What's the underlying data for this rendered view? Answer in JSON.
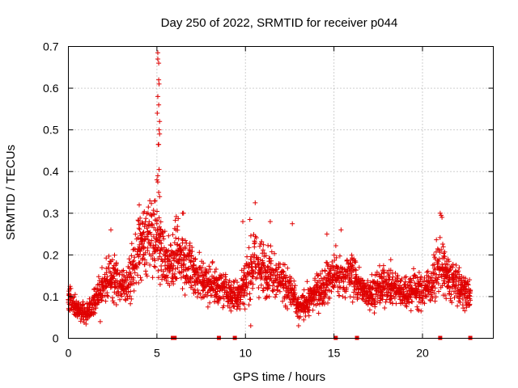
{
  "chart_data": {
    "type": "scatter",
    "title": "Day 250 of 2022, SRMTID for receiver p044",
    "xlabel": "GPS time / hours",
    "ylabel": "SRMTID / TECUs",
    "xlim": [
      0,
      24
    ],
    "ylim": [
      0,
      0.7
    ],
    "xticks": [
      0,
      5,
      10,
      15,
      20
    ],
    "yticks": [
      0,
      0.1,
      0.2,
      0.3,
      0.4,
      0.5,
      0.6,
      0.7
    ],
    "grid": true,
    "legend": "none",
    "marker": "plus",
    "color": "#e00000",
    "series": [
      {
        "name": "SRMTID",
        "generated_points": true,
        "baseline_profile": [
          [
            0.0,
            0.1
          ],
          [
            0.5,
            0.07
          ],
          [
            1.0,
            0.06
          ],
          [
            1.5,
            0.09
          ],
          [
            2.0,
            0.13
          ],
          [
            2.5,
            0.15
          ],
          [
            3.0,
            0.12
          ],
          [
            3.5,
            0.14
          ],
          [
            4.0,
            0.22
          ],
          [
            4.5,
            0.24
          ],
          [
            5.0,
            0.25
          ],
          [
            5.5,
            0.18
          ],
          [
            6.0,
            0.2
          ],
          [
            6.5,
            0.19
          ],
          [
            7.0,
            0.17
          ],
          [
            7.5,
            0.14
          ],
          [
            8.0,
            0.13
          ],
          [
            8.5,
            0.12
          ],
          [
            9.0,
            0.11
          ],
          [
            9.5,
            0.1
          ],
          [
            10.0,
            0.14
          ],
          [
            10.5,
            0.18
          ],
          [
            11.0,
            0.17
          ],
          [
            11.5,
            0.16
          ],
          [
            12.0,
            0.14
          ],
          [
            12.5,
            0.12
          ],
          [
            13.0,
            0.07
          ],
          [
            13.5,
            0.09
          ],
          [
            14.0,
            0.11
          ],
          [
            14.5,
            0.13
          ],
          [
            15.0,
            0.15
          ],
          [
            15.5,
            0.14
          ],
          [
            16.0,
            0.16
          ],
          [
            16.5,
            0.12
          ],
          [
            17.0,
            0.11
          ],
          [
            17.5,
            0.12
          ],
          [
            18.0,
            0.13
          ],
          [
            18.5,
            0.12
          ],
          [
            19.0,
            0.11
          ],
          [
            19.5,
            0.12
          ],
          [
            20.0,
            0.11
          ],
          [
            20.5,
            0.13
          ],
          [
            21.0,
            0.18
          ],
          [
            21.5,
            0.14
          ],
          [
            22.0,
            0.13
          ],
          [
            22.5,
            0.11
          ],
          [
            22.7,
            0.1
          ]
        ],
        "outliers": [
          [
            5.05,
            0.685
          ],
          [
            5.05,
            0.67
          ],
          [
            5.1,
            0.66
          ],
          [
            5.1,
            0.62
          ],
          [
            5.12,
            0.61
          ],
          [
            5.05,
            0.58
          ],
          [
            5.1,
            0.56
          ],
          [
            5.02,
            0.54
          ],
          [
            5.15,
            0.52
          ],
          [
            5.12,
            0.5
          ],
          [
            5.15,
            0.49
          ],
          [
            5.08,
            0.465
          ],
          [
            5.1,
            0.465
          ],
          [
            5.12,
            0.405
          ],
          [
            5.05,
            0.39
          ],
          [
            5.0,
            0.38
          ],
          [
            5.05,
            0.375
          ],
          [
            5.1,
            0.35
          ],
          [
            5.15,
            0.34
          ],
          [
            4.9,
            0.33
          ],
          [
            4.0,
            0.32
          ],
          [
            4.6,
            0.33
          ],
          [
            6.5,
            0.3
          ],
          [
            6.45,
            0.3
          ],
          [
            10.55,
            0.325
          ],
          [
            10.25,
            0.285
          ],
          [
            9.85,
            0.28
          ],
          [
            11.4,
            0.28
          ],
          [
            12.65,
            0.275
          ],
          [
            21.0,
            0.3
          ],
          [
            21.05,
            0.295
          ],
          [
            21.1,
            0.29
          ],
          [
            15.4,
            0.26
          ],
          [
            14.6,
            0.25
          ],
          [
            2.4,
            0.26
          ],
          [
            13.0,
            0.03
          ],
          [
            1.8,
            0.04
          ],
          [
            10.3,
            0.03
          ]
        ],
        "zero_markers": [
          5.9,
          6.0,
          8.5,
          9.4,
          15.1,
          16.3,
          21.0,
          22.7
        ]
      }
    ]
  }
}
